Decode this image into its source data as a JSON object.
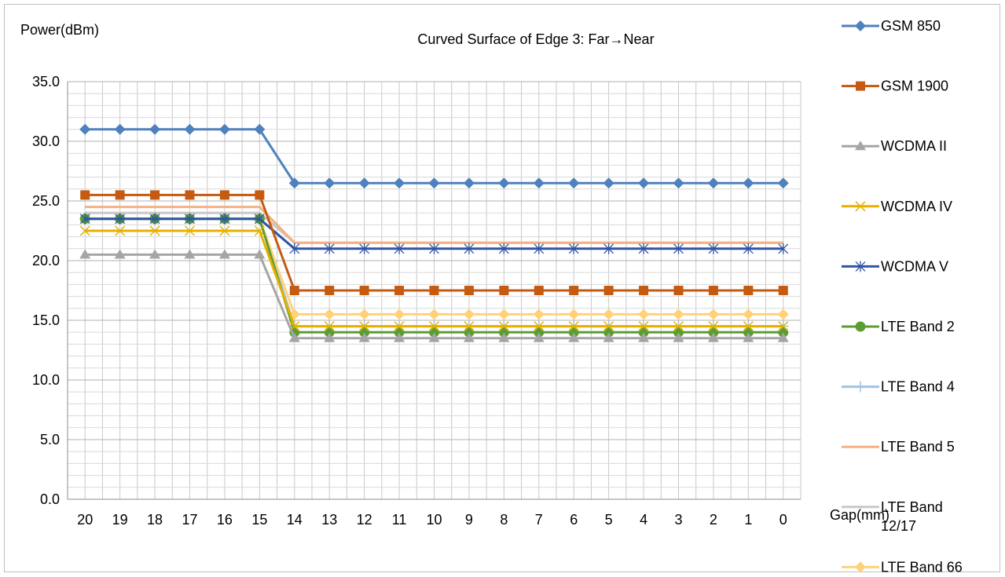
{
  "chart_data": {
    "type": "line",
    "title": "Curved Surface of Edge 3: Far→Near",
    "ylabel": "Power(dBm)",
    "xlabel": "Gap(mm)",
    "x": [
      20,
      19,
      18,
      17,
      16,
      15,
      14,
      13,
      12,
      11,
      10,
      9,
      8,
      7,
      6,
      5,
      4,
      3,
      2,
      1,
      0
    ],
    "ylim": [
      0,
      35
    ],
    "yticks": [
      "0.0",
      "5.0",
      "10.0",
      "15.0",
      "20.0",
      "25.0",
      "30.0",
      "35.0"
    ],
    "grid": "major and minor",
    "legend_position": "right",
    "series": [
      {
        "name": "GSM 850",
        "color": "#4e81bd",
        "marker": "diamond",
        "values": [
          31,
          31,
          31,
          31,
          31,
          31,
          26.5,
          26.5,
          26.5,
          26.5,
          26.5,
          26.5,
          26.5,
          26.5,
          26.5,
          26.5,
          26.5,
          26.5,
          26.5,
          26.5,
          26.5
        ]
      },
      {
        "name": "GSM 1900",
        "color": "#c55a11",
        "marker": "square",
        "values": [
          25.5,
          25.5,
          25.5,
          25.5,
          25.5,
          25.5,
          17.5,
          17.5,
          17.5,
          17.5,
          17.5,
          17.5,
          17.5,
          17.5,
          17.5,
          17.5,
          17.5,
          17.5,
          17.5,
          17.5,
          17.5
        ]
      },
      {
        "name": "WCDMA II",
        "color": "#a5a5a5",
        "marker": "triangle",
        "values": [
          20.5,
          20.5,
          20.5,
          20.5,
          20.5,
          20.5,
          13.5,
          13.5,
          13.5,
          13.5,
          13.5,
          13.5,
          13.5,
          13.5,
          13.5,
          13.5,
          13.5,
          13.5,
          13.5,
          13.5,
          13.5
        ]
      },
      {
        "name": "WCDMA IV",
        "color": "#e6b000",
        "marker": "x",
        "values": [
          22.5,
          22.5,
          22.5,
          22.5,
          22.5,
          22.5,
          14.5,
          14.5,
          14.5,
          14.5,
          14.5,
          14.5,
          14.5,
          14.5,
          14.5,
          14.5,
          14.5,
          14.5,
          14.5,
          14.5,
          14.5
        ]
      },
      {
        "name": "WCDMA V",
        "color": "#2f55a4",
        "marker": "star",
        "values": [
          23.5,
          23.5,
          23.5,
          23.5,
          23.5,
          23.5,
          21,
          21,
          21,
          21,
          21,
          21,
          21,
          21,
          21,
          21,
          21,
          21,
          21,
          21,
          21
        ]
      },
      {
        "name": "LTE Band 2",
        "color": "#5a9e33",
        "marker": "circle",
        "values": [
          23.5,
          23.5,
          23.5,
          23.5,
          23.5,
          23.5,
          14,
          14,
          14,
          14,
          14,
          14,
          14,
          14,
          14,
          14,
          14,
          14,
          14,
          14,
          14
        ]
      },
      {
        "name": "LTE Band 4",
        "color": "#9dc3e6",
        "marker": "plus",
        "values": [
          23.5,
          23.5,
          23.5,
          23.5,
          23.5,
          23.5,
          14.5,
          14.5,
          14.5,
          14.5,
          14.5,
          14.5,
          14.5,
          14.5,
          14.5,
          14.5,
          14.5,
          14.5,
          14.5,
          14.5,
          14.5
        ]
      },
      {
        "name": "LTE Band 5",
        "color": "#f4b183",
        "marker": "none",
        "values": [
          24.5,
          24.5,
          24.5,
          24.5,
          24.5,
          24.5,
          21.5,
          21.5,
          21.5,
          21.5,
          21.5,
          21.5,
          21.5,
          21.5,
          21.5,
          21.5,
          21.5,
          21.5,
          21.5,
          21.5,
          21.5
        ]
      },
      {
        "name": "LTE Band 12/17",
        "color": "#c8c8c8",
        "marker": "none",
        "values": [
          24,
          24,
          24,
          24,
          24,
          24,
          21.5,
          21.5,
          21.5,
          21.5,
          21.5,
          21.5,
          21.5,
          21.5,
          21.5,
          21.5,
          21.5,
          21.5,
          21.5,
          21.5,
          21.5
        ]
      },
      {
        "name": "LTE Band 66",
        "color": "#ffd27a",
        "marker": "diamond",
        "values": [
          23.5,
          23.5,
          23.5,
          23.5,
          23.5,
          23.5,
          15.5,
          15.5,
          15.5,
          15.5,
          15.5,
          15.5,
          15.5,
          15.5,
          15.5,
          15.5,
          15.5,
          15.5,
          15.5,
          15.5,
          15.5
        ]
      }
    ]
  },
  "legend_lines": {
    "s0": [
      "GSM 850"
    ],
    "s1": [
      "GSM 1900"
    ],
    "s2": [
      "WCDMA II"
    ],
    "s3": [
      "WCDMA IV"
    ],
    "s4": [
      "WCDMA V"
    ],
    "s5": [
      "LTE Band 2"
    ],
    "s6": [
      "LTE Band 4"
    ],
    "s7": [
      "LTE Band 5"
    ],
    "s8": [
      "LTE Band",
      "12/17"
    ],
    "s9": [
      "LTE Band 66"
    ]
  }
}
